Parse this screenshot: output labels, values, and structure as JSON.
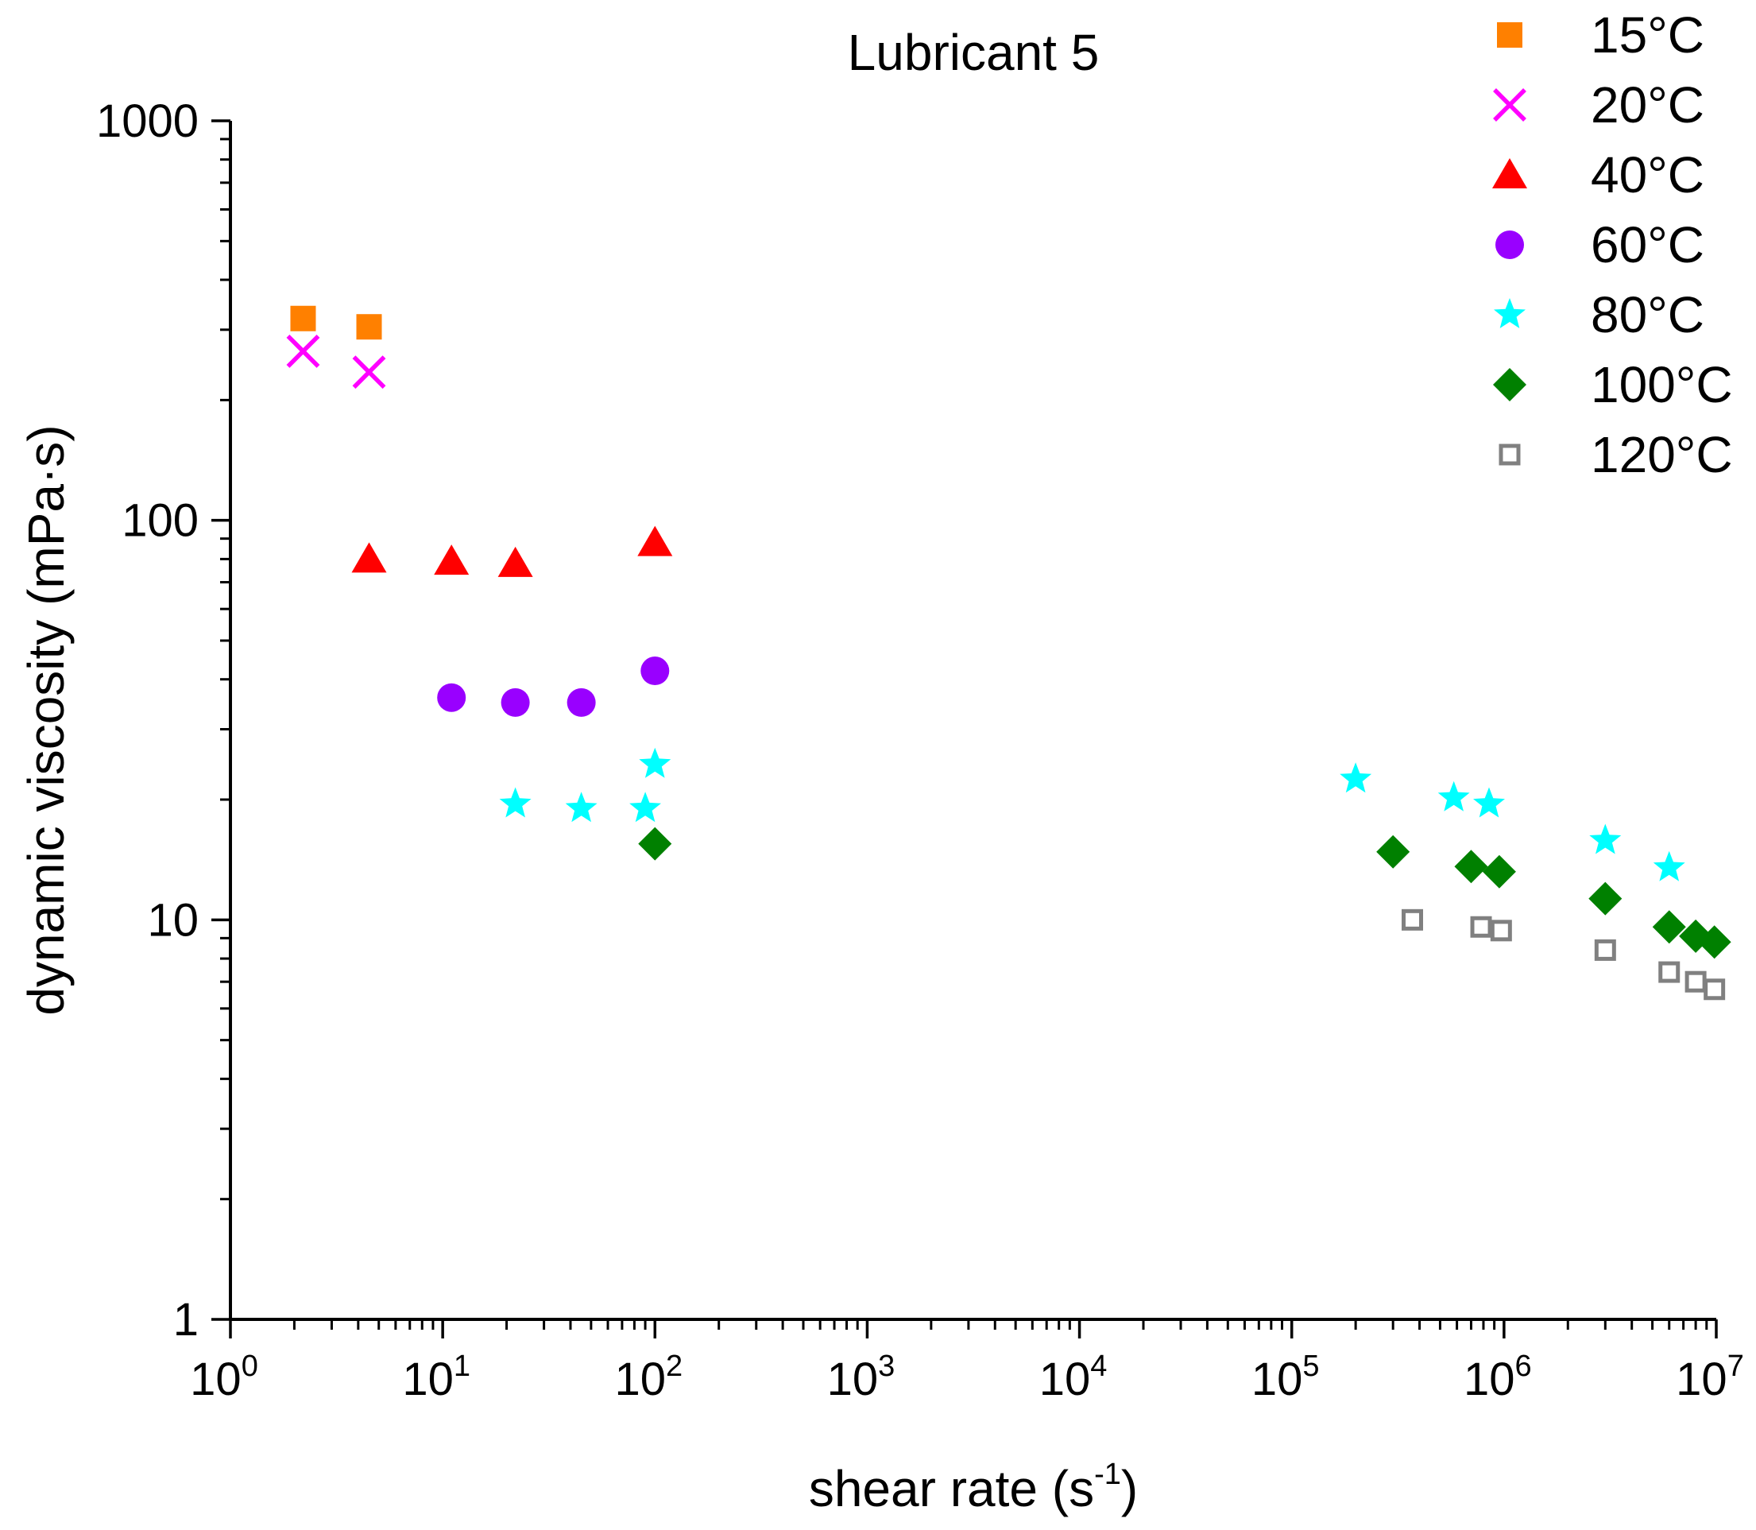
{
  "chart_data": {
    "type": "scatter",
    "title": "Lubricant 5",
    "xlabel": "shear rate (s",
    "xlabel_sup": "-1",
    "xlabel_suffix": ")",
    "ylabel": "dynamic viscosity (mPa·s)",
    "xscale": "log",
    "yscale": "log",
    "xlim": [
      1,
      10000000
    ],
    "ylim": [
      1,
      1000
    ],
    "x_ticks": [
      {
        "value": 1,
        "base": "10",
        "exp": "0"
      },
      {
        "value": 10,
        "base": "10",
        "exp": "1"
      },
      {
        "value": 100,
        "base": "10",
        "exp": "2"
      },
      {
        "value": 1000,
        "base": "10",
        "exp": "3"
      },
      {
        "value": 10000,
        "base": "10",
        "exp": "4"
      },
      {
        "value": 100000,
        "base": "10",
        "exp": "5"
      },
      {
        "value": 1000000,
        "base": "10",
        "exp": "6"
      },
      {
        "value": 10000000,
        "base": "10",
        "exp": "7"
      }
    ],
    "y_ticks": [
      {
        "value": 1,
        "label": "1"
      },
      {
        "value": 10,
        "label": "10"
      },
      {
        "value": 100,
        "label": "100"
      },
      {
        "value": 1000,
        "label": "1000"
      }
    ],
    "grid": false,
    "legend_position": "top-right",
    "series": [
      {
        "name": "15°C",
        "marker": "square-filled",
        "color": "#FF8000",
        "points": [
          [
            2.2,
            320
          ],
          [
            4.5,
            305
          ]
        ]
      },
      {
        "name": "20°C",
        "marker": "x",
        "color": "#FF00FF",
        "points": [
          [
            2.2,
            265
          ],
          [
            4.5,
            235
          ]
        ]
      },
      {
        "name": "40°C",
        "marker": "triangle-filled",
        "color": "#FF0000",
        "points": [
          [
            4.5,
            80
          ],
          [
            11,
            79
          ],
          [
            22,
            78
          ],
          [
            100,
            88
          ]
        ]
      },
      {
        "name": "60°C",
        "marker": "circle-filled",
        "color": "#9900FF",
        "points": [
          [
            11,
            36
          ],
          [
            22,
            35
          ],
          [
            45,
            35
          ],
          [
            100,
            42
          ]
        ]
      },
      {
        "name": "80°C",
        "marker": "star-filled",
        "color": "#00FFFF",
        "points": [
          [
            22,
            19.5
          ],
          [
            45,
            19
          ],
          [
            90,
            19
          ],
          [
            100,
            24.5
          ],
          [
            200000,
            22.5
          ],
          [
            580000,
            20.2
          ],
          [
            850000,
            19.5
          ],
          [
            3000000,
            15.8
          ],
          [
            6000000,
            13.5
          ]
        ]
      },
      {
        "name": "100°C",
        "marker": "diamond-filled",
        "color": "#008000",
        "points": [
          [
            100,
            15.5
          ],
          [
            300000,
            14.8
          ],
          [
            700000,
            13.6
          ],
          [
            950000,
            13.2
          ],
          [
            3000000,
            11.3
          ],
          [
            6000000,
            9.6
          ],
          [
            8000000,
            9.1
          ],
          [
            9800000,
            8.8
          ]
        ]
      },
      {
        "name": "120°C",
        "marker": "square-open",
        "color": "#808080",
        "points": [
          [
            370000,
            10
          ],
          [
            780000,
            9.6
          ],
          [
            970000,
            9.4
          ],
          [
            3000000,
            8.4
          ],
          [
            6000000,
            7.4
          ],
          [
            8000000,
            7
          ],
          [
            9800000,
            6.7
          ]
        ]
      }
    ]
  }
}
